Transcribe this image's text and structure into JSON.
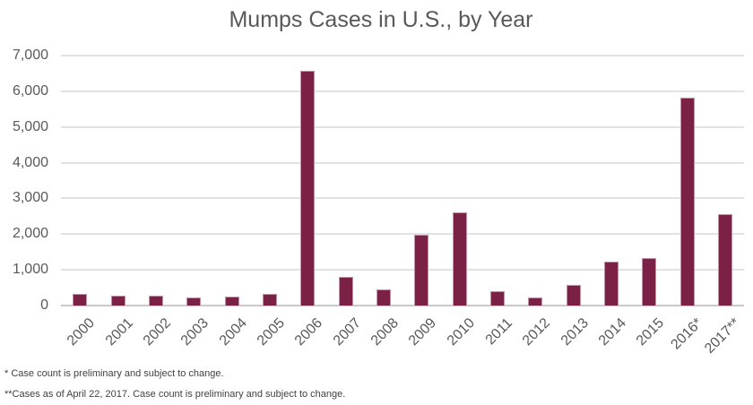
{
  "chart_data": {
    "type": "bar",
    "title": "Mumps Cases in U.S., by Year",
    "categories": [
      "2000",
      "2001",
      "2002",
      "2003",
      "2004",
      "2005",
      "2006",
      "2007",
      "2008",
      "2009",
      "2010",
      "2011",
      "2012",
      "2013",
      "2014",
      "2015",
      "2016*",
      "2017**"
    ],
    "values": [
      338,
      266,
      270,
      231,
      258,
      314,
      6584,
      800,
      454,
      1991,
      2612,
      404,
      229,
      584,
      1223,
      1329,
      5833,
      2570
    ],
    "xlabel": "",
    "ylabel": "",
    "ylim": [
      0,
      7000
    ],
    "yticks": [
      0,
      1000,
      2000,
      3000,
      4000,
      5000,
      6000,
      7000
    ],
    "ytick_labels": [
      "0",
      "1,000",
      "2,000",
      "3,000",
      "4,000",
      "5,000",
      "6,000",
      "7,000"
    ],
    "grid": true,
    "legend": false,
    "x_labels_rotation_deg": -45,
    "colors": {
      "bar_fill": "#7A2145",
      "bar_border": "#C193AB",
      "gridline": "#E2E2E2",
      "axis_line": "#C9C9C9",
      "axis_text": "#595959",
      "title_text": "#595959",
      "footnote_text": "#404040"
    }
  },
  "footnotes": [
    "* Case count is preliminary and subject to change.",
    "**Cases as of April 22, 2017. Case count is preliminary and subject to change."
  ]
}
